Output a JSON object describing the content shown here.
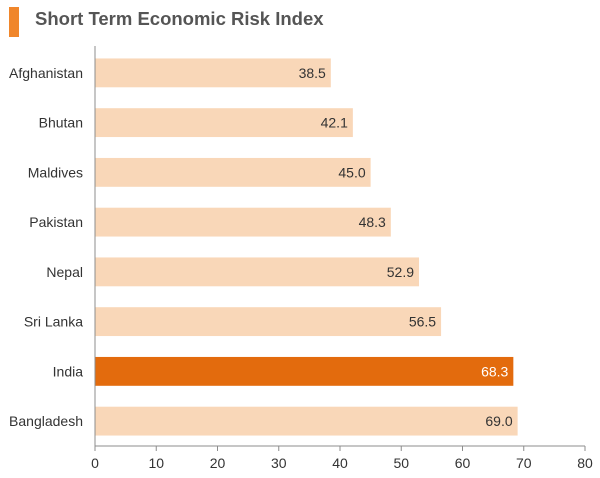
{
  "chart_data": {
    "type": "bar",
    "orientation": "horizontal",
    "title": "Short Term Economic Risk Index",
    "categories": [
      "Afghanistan",
      "Bhutan",
      "Maldives",
      "Pakistan",
      "Nepal",
      "Sri Lanka",
      "India",
      "Bangladesh"
    ],
    "values": [
      38.5,
      42.1,
      45.0,
      48.3,
      52.9,
      56.5,
      68.3,
      69.0
    ],
    "value_labels": [
      "38.5",
      "42.1",
      "45.0",
      "48.3",
      "52.9",
      "56.5",
      "68.3",
      "69.0"
    ],
    "highlight_category": "India",
    "xlim": [
      0,
      80
    ],
    "xticks": [
      "0",
      "10",
      "20",
      "30",
      "40",
      "50",
      "60",
      "70",
      "80"
    ],
    "xlabel": "",
    "ylabel": "",
    "grid": false,
    "legend": "none"
  },
  "colors": {
    "accent": "#f0862b",
    "bar": "#f9d7b8",
    "bar_highlight": "#e36b0d",
    "axis": "#8c8c8c",
    "text": "#333333",
    "title": "#555555"
  }
}
